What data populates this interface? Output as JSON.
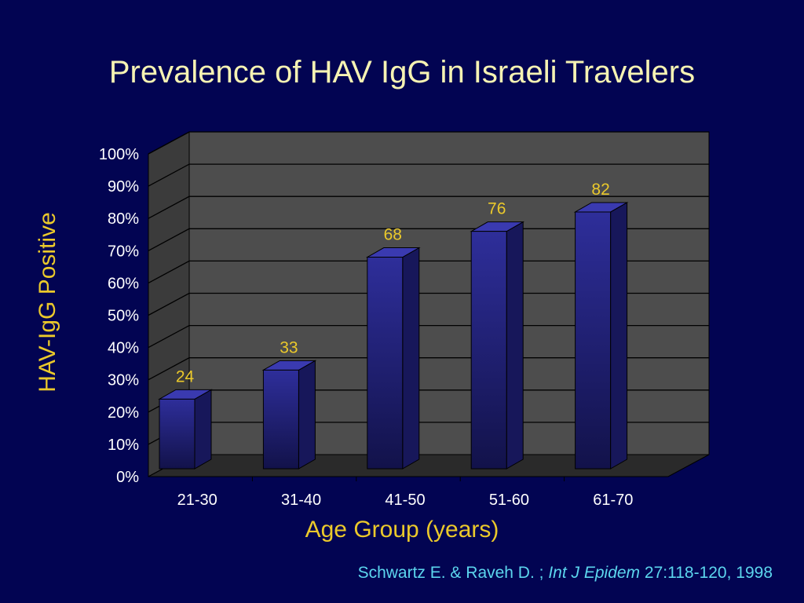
{
  "slide": {
    "title": "Prevalence of HAV IgG in Israeli Travelers",
    "citation": {
      "authors": "Schwartz E. & Raveh D. ;",
      "journal": "Int J Epidem",
      "details": "27:118-120, 1998"
    }
  },
  "colors": {
    "background": "#020452",
    "title": "#f6f3b3",
    "axis_label": "#ebc92b",
    "data_label": "#ebc92b",
    "citation": "#5cd6ee",
    "bar_front": "#2e2e9a",
    "plot_back_wall": "#4d4d4d"
  },
  "chart_data": {
    "type": "bar",
    "categories": [
      "21-30",
      "31-40",
      "41-50",
      "51-60",
      "61-70"
    ],
    "values": [
      24,
      33,
      68,
      76,
      82
    ],
    "value_labels": [
      "24",
      "33",
      "68",
      "76",
      "82"
    ],
    "y_ticks": [
      "0%",
      "10%",
      "20%",
      "30%",
      "40%",
      "50%",
      "60%",
      "70%",
      "80%",
      "90%",
      "100%"
    ],
    "xlabel": "Age Group (years)",
    "ylabel": "HAV-IgG Positive",
    "ylim": [
      0,
      100
    ],
    "grid": true,
    "style": "3d"
  }
}
